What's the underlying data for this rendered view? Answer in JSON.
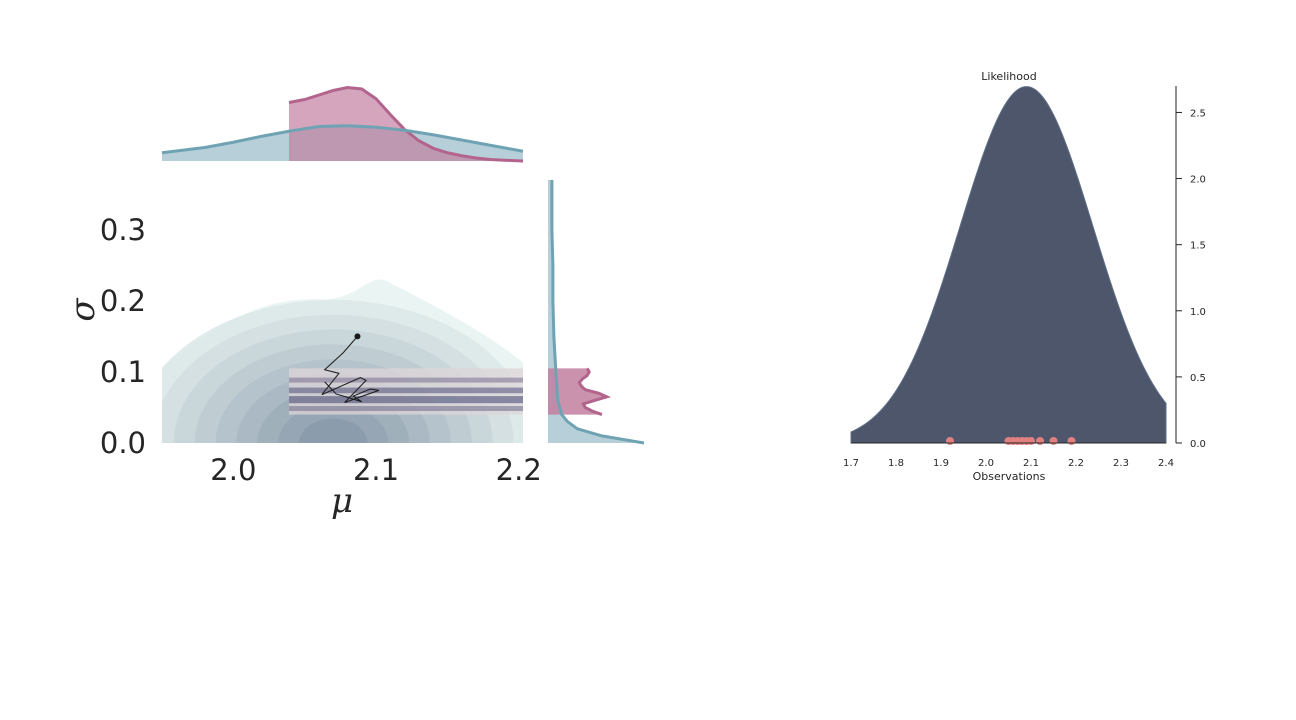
{
  "colors": {
    "prior": "#6fa3b3",
    "prior_fill": "#a9c7d1",
    "posterior": "#b3648c",
    "posterior_fill": "#c27fa0",
    "likelihood_fill": "#4e566b",
    "observations": "#e08080",
    "contour_light": "#e6f2f0",
    "contour_dark": "#8a9aab"
  },
  "chart_data": [
    {
      "type": "area",
      "subtype": "joint-density",
      "xlabel": "μ",
      "ylabel": "σ",
      "xlim": [
        1.95,
        2.203
      ],
      "ylim": [
        0.0,
        0.37
      ],
      "x_ticks": [
        "2.0",
        "2.1",
        "2.2"
      ],
      "y_ticks": [
        "0.0",
        "0.1",
        "0.2",
        "0.3"
      ],
      "prior_contour_peak": {
        "mu": 2.07,
        "sigma": 0.0
      },
      "posterior_region": {
        "mu": [
          2.039,
          2.203
        ],
        "sigma": [
          0.04,
          0.105
        ]
      },
      "sampler_trace": {
        "mu": [
          2.087,
          2.077,
          2.064,
          2.074,
          2.062,
          2.089,
          2.093,
          2.078,
          2.102,
          2.096,
          2.084,
          2.09,
          2.072,
          2.064
        ],
        "sigma": [
          0.15,
          0.127,
          0.103,
          0.098,
          0.068,
          0.092,
          0.088,
          0.057,
          0.074,
          0.076,
          0.066,
          0.058,
          0.069,
          0.086
        ]
      },
      "marginal_mu": {
        "x": [
          1.95,
          1.98,
          2.0,
          2.02,
          2.04,
          2.06,
          2.08,
          2.1,
          2.12,
          2.14,
          2.16,
          2.18,
          2.203
        ],
        "prior": [
          0.11,
          0.18,
          0.25,
          0.33,
          0.4,
          0.46,
          0.47,
          0.45,
          0.41,
          0.35,
          0.28,
          0.21,
          0.13
        ],
        "posterior_x": [
          2.039,
          2.05,
          2.06,
          2.07,
          2.08,
          2.09,
          2.1,
          2.11,
          2.12,
          2.13,
          2.14,
          2.15,
          2.16,
          2.17,
          2.18,
          2.19,
          2.203
        ],
        "posterior": [
          0.78,
          0.82,
          0.88,
          0.94,
          0.98,
          0.96,
          0.83,
          0.62,
          0.42,
          0.27,
          0.17,
          0.11,
          0.07,
          0.04,
          0.02,
          0.01,
          0.0
        ]
      },
      "marginal_sigma": {
        "y": [
          0.0,
          0.01,
          0.02,
          0.03,
          0.04,
          0.06,
          0.1,
          0.15,
          0.2,
          0.25,
          0.3,
          0.37
        ],
        "prior": [
          0.98,
          0.55,
          0.3,
          0.2,
          0.14,
          0.1,
          0.08,
          0.06,
          0.05,
          0.05,
          0.04,
          0.04
        ],
        "posterior_y": [
          0.04,
          0.045,
          0.05,
          0.055,
          0.06,
          0.065,
          0.07,
          0.075,
          0.08,
          0.085,
          0.09,
          0.095,
          0.1,
          0.105
        ],
        "posterior": [
          0.55,
          0.45,
          0.38,
          0.36,
          0.48,
          0.6,
          0.52,
          0.38,
          0.34,
          0.32,
          0.35,
          0.4,
          0.42,
          0.4
        ]
      }
    },
    {
      "type": "area",
      "title": "Likelihood",
      "xlabel": "Observations",
      "ylabel": "",
      "xlim": [
        1.7,
        2.4
      ],
      "ylim": [
        0.0,
        2.7
      ],
      "x_ticks": [
        "1.7",
        "1.8",
        "1.9",
        "2.0",
        "2.1",
        "2.2",
        "2.3",
        "2.4"
      ],
      "y_ticks": [
        "0.0",
        "0.5",
        "1.0",
        "1.5",
        "2.0",
        "2.5"
      ],
      "y_axis_side": "right",
      "curve": {
        "mean": 2.09,
        "sd": 0.148
      },
      "observations": [
        1.92,
        2.05,
        2.06,
        2.07,
        2.08,
        2.09,
        2.1,
        2.12,
        2.15,
        2.19
      ]
    }
  ]
}
